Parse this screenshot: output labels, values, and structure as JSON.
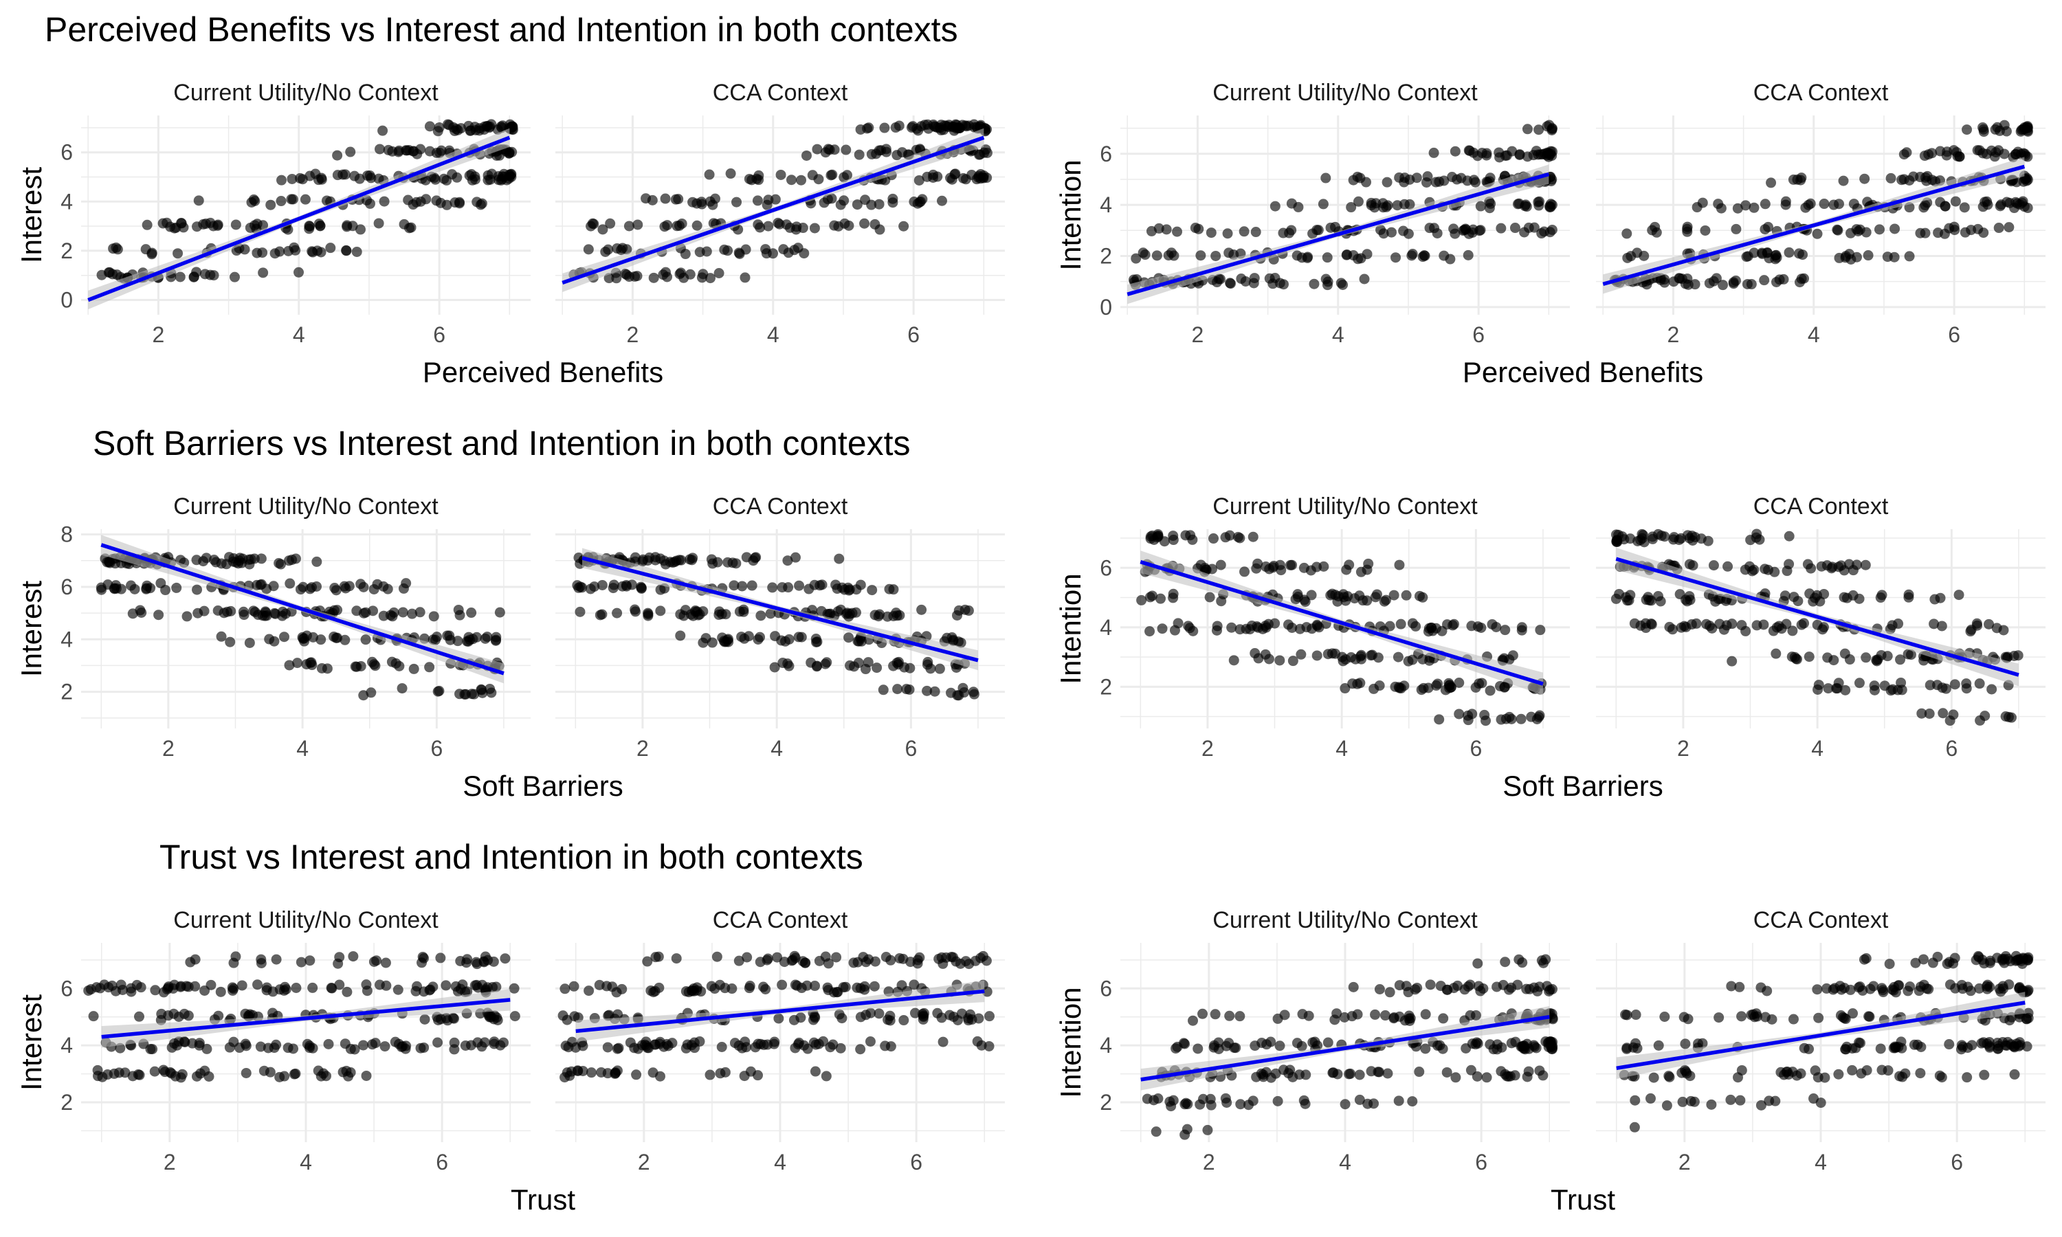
{
  "figure": {
    "row_titles": [
      "Perceived Benefits vs Interest and Intention in both contexts",
      "Soft Barriers vs  Interest and Intention in both contexts",
      "Trust vs Interest and Intention in both contexts"
    ]
  },
  "colors": {
    "point": "#000000",
    "fit_line": "#0000ee",
    "ci_band": "#bdbdbd",
    "grid": "#ebebeb",
    "tick_text": "#4d4d4d"
  },
  "chart_data": [
    {
      "type": "scatter",
      "row": 0,
      "col": 0,
      "facet": "Current Utility/No Context",
      "xlabel": "Perceived Benefits",
      "ylabel": "Interest",
      "xlim": [
        0.9,
        7.3
      ],
      "ylim": [
        -0.6,
        7.5
      ],
      "xticks": [
        2,
        4,
        6
      ],
      "yticks": [
        0,
        2,
        4,
        6
      ],
      "fit": {
        "x": [
          1,
          7
        ],
        "y": [
          0,
          6.6
        ]
      },
      "grid": true
    },
    {
      "type": "scatter",
      "row": 0,
      "col": 1,
      "facet": "CCA Context",
      "xlabel": "Perceived Benefits",
      "ylabel": "Interest",
      "xlim": [
        0.9,
        7.3
      ],
      "ylim": [
        -0.6,
        7.5
      ],
      "xticks": [
        2,
        4,
        6
      ],
      "yticks": [
        0,
        2,
        4,
        6
      ],
      "fit": {
        "x": [
          1,
          7
        ],
        "y": [
          0.7,
          6.6
        ]
      },
      "grid": true
    },
    {
      "type": "scatter",
      "row": 0,
      "col": 2,
      "facet": "Current Utility/No Context",
      "xlabel": "Perceived Benefits",
      "ylabel": "Intention",
      "xlim": [
        0.9,
        7.3
      ],
      "ylim": [
        -0.3,
        7.5
      ],
      "xticks": [
        2,
        4,
        6
      ],
      "yticks": [
        0,
        2,
        4,
        6
      ],
      "fit": {
        "x": [
          1,
          7
        ],
        "y": [
          0.5,
          5.2
        ]
      },
      "grid": true
    },
    {
      "type": "scatter",
      "row": 0,
      "col": 3,
      "facet": "CCA Context",
      "xlabel": "Perceived Benefits",
      "ylabel": "Intention",
      "xlim": [
        0.9,
        7.3
      ],
      "ylim": [
        -0.3,
        7.5
      ],
      "xticks": [
        2,
        4,
        6
      ],
      "yticks": [
        0,
        2,
        4,
        6
      ],
      "fit": {
        "x": [
          1,
          7
        ],
        "y": [
          0.9,
          5.5
        ]
      },
      "grid": true
    },
    {
      "type": "scatter",
      "row": 1,
      "col": 0,
      "facet": "Current Utility/No Context",
      "xlabel": "Soft Barriers",
      "ylabel": "Interest",
      "xlim": [
        0.7,
        7.4
      ],
      "ylim": [
        0.6,
        8.2
      ],
      "xticks": [
        2,
        4,
        6
      ],
      "yticks": [
        2,
        4,
        6,
        8
      ],
      "fit": {
        "x": [
          1,
          7
        ],
        "y": [
          7.6,
          2.7
        ]
      },
      "grid": true
    },
    {
      "type": "scatter",
      "row": 1,
      "col": 1,
      "facet": "CCA Context",
      "xlabel": "Soft Barriers",
      "ylabel": "Interest",
      "xlim": [
        0.7,
        7.4
      ],
      "ylim": [
        0.6,
        8.2
      ],
      "xticks": [
        2,
        4,
        6
      ],
      "yticks": [
        2,
        4,
        6,
        8
      ],
      "fit": {
        "x": [
          1.1,
          7
        ],
        "y": [
          7.1,
          3.2
        ]
      },
      "grid": true
    },
    {
      "type": "scatter",
      "row": 1,
      "col": 2,
      "facet": "Current Utility/No Context",
      "xlabel": "Soft Barriers",
      "ylabel": "Intention",
      "xlim": [
        0.7,
        7.4
      ],
      "ylim": [
        0.6,
        7.3
      ],
      "xticks": [
        2,
        4,
        6
      ],
      "yticks": [
        2,
        4,
        6
      ],
      "fit": {
        "x": [
          1,
          7
        ],
        "y": [
          6.2,
          2.1
        ]
      },
      "grid": true
    },
    {
      "type": "scatter",
      "row": 1,
      "col": 3,
      "facet": "CCA Context",
      "xlabel": "Soft Barriers",
      "ylabel": "Intention",
      "xlim": [
        0.7,
        7.4
      ],
      "ylim": [
        0.6,
        7.3
      ],
      "xticks": [
        2,
        4,
        6
      ],
      "yticks": [
        2,
        4,
        6
      ],
      "fit": {
        "x": [
          1,
          7
        ],
        "y": [
          6.3,
          2.4
        ]
      },
      "grid": true
    },
    {
      "type": "scatter",
      "row": 2,
      "col": 0,
      "facet": "Current Utility/No Context",
      "xlabel": "Trust",
      "ylabel": "Interest",
      "xlim": [
        0.7,
        7.3
      ],
      "ylim": [
        0.6,
        7.6
      ],
      "xticks": [
        2,
        4,
        6
      ],
      "yticks": [
        2,
        4,
        6
      ],
      "fit": {
        "x": [
          1,
          7
        ],
        "y": [
          4.3,
          5.6
        ]
      },
      "grid": true
    },
    {
      "type": "scatter",
      "row": 2,
      "col": 1,
      "facet": "CCA Context",
      "xlabel": "Trust",
      "ylabel": "Interest",
      "xlim": [
        0.7,
        7.3
      ],
      "ylim": [
        0.6,
        7.6
      ],
      "xticks": [
        2,
        4,
        6
      ],
      "yticks": [
        2,
        4,
        6
      ],
      "fit": {
        "x": [
          1,
          7
        ],
        "y": [
          4.5,
          5.9
        ]
      },
      "grid": true
    },
    {
      "type": "scatter",
      "row": 2,
      "col": 2,
      "facet": "Current Utility/No Context",
      "xlabel": "Trust",
      "ylabel": "Intention",
      "xlim": [
        0.7,
        7.3
      ],
      "ylim": [
        0.6,
        7.6
      ],
      "xticks": [
        2,
        4,
        6
      ],
      "yticks": [
        2,
        4,
        6
      ],
      "fit": {
        "x": [
          1,
          7
        ],
        "y": [
          2.8,
          5.0
        ]
      },
      "grid": true
    },
    {
      "type": "scatter",
      "row": 2,
      "col": 3,
      "facet": "CCA Context",
      "xlabel": "Trust",
      "ylabel": "Intention",
      "xlim": [
        0.7,
        7.3
      ],
      "ylim": [
        0.6,
        7.6
      ],
      "xticks": [
        2,
        4,
        6
      ],
      "yticks": [
        2,
        4,
        6
      ],
      "fit": {
        "x": [
          1,
          7
        ],
        "y": [
          3.2,
          5.5
        ]
      },
      "grid": true
    }
  ]
}
